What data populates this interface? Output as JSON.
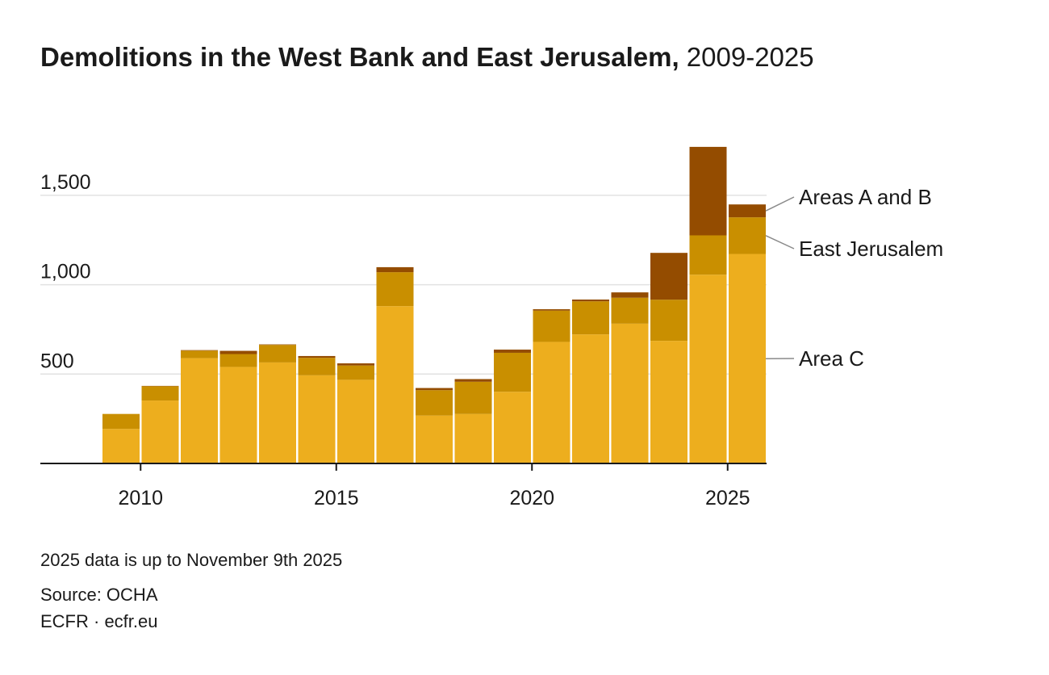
{
  "header": {
    "title_bold": "Demolitions in the West Bank and East Jerusalem,",
    "title_light": " 2009-2025"
  },
  "chart_data": {
    "type": "bar",
    "stacked": true,
    "categories": [
      "2009",
      "2010",
      "2011",
      "2012",
      "2013",
      "2014",
      "2015",
      "2016",
      "2017",
      "2018",
      "2019",
      "2020",
      "2021",
      "2022",
      "2023",
      "2024",
      "2025"
    ],
    "series": [
      {
        "name": "Area C",
        "color": "#EDAE1E",
        "values": [
          193,
          352,
          589,
          540,
          565,
          493,
          468,
          880,
          268,
          277,
          401,
          680,
          722,
          782,
          686,
          1056,
          1172
        ]
      },
      {
        "name": "East Jerusalem",
        "color": "#C98F00",
        "values": [
          84,
          80,
          42,
          72,
          98,
          98,
          80,
          190,
          142,
          180,
          218,
          175,
          185,
          145,
          230,
          220,
          205
        ]
      },
      {
        "name": "Areas A and B",
        "color": "#944C00",
        "values": [
          0,
          2,
          3,
          18,
          3,
          10,
          12,
          28,
          12,
          15,
          18,
          8,
          10,
          30,
          262,
          495,
          72
        ]
      }
    ],
    "y_ticks": [
      500,
      1000,
      1500
    ],
    "y_tick_labels": [
      "500",
      "1,000",
      "1,500"
    ],
    "x_ticks": [
      "2010",
      "2015",
      "2020",
      "2025"
    ],
    "ylim": [
      0,
      1800
    ],
    "grid": true,
    "legend": "inline-right",
    "xlabel": "",
    "ylabel": ""
  },
  "notes": {
    "data_note": "2025 data is up to November 9th 2025",
    "source": "Source: OCHA",
    "credit": "ECFR · ecfr.eu"
  },
  "colors": {
    "area_c": "#EDAE1E",
    "east_jerusalem": "#C98F00",
    "areas_a_b": "#944C00",
    "grid": "#e2e2e2",
    "axis": "#1a1a1a",
    "leader": "#8a8a8a"
  }
}
